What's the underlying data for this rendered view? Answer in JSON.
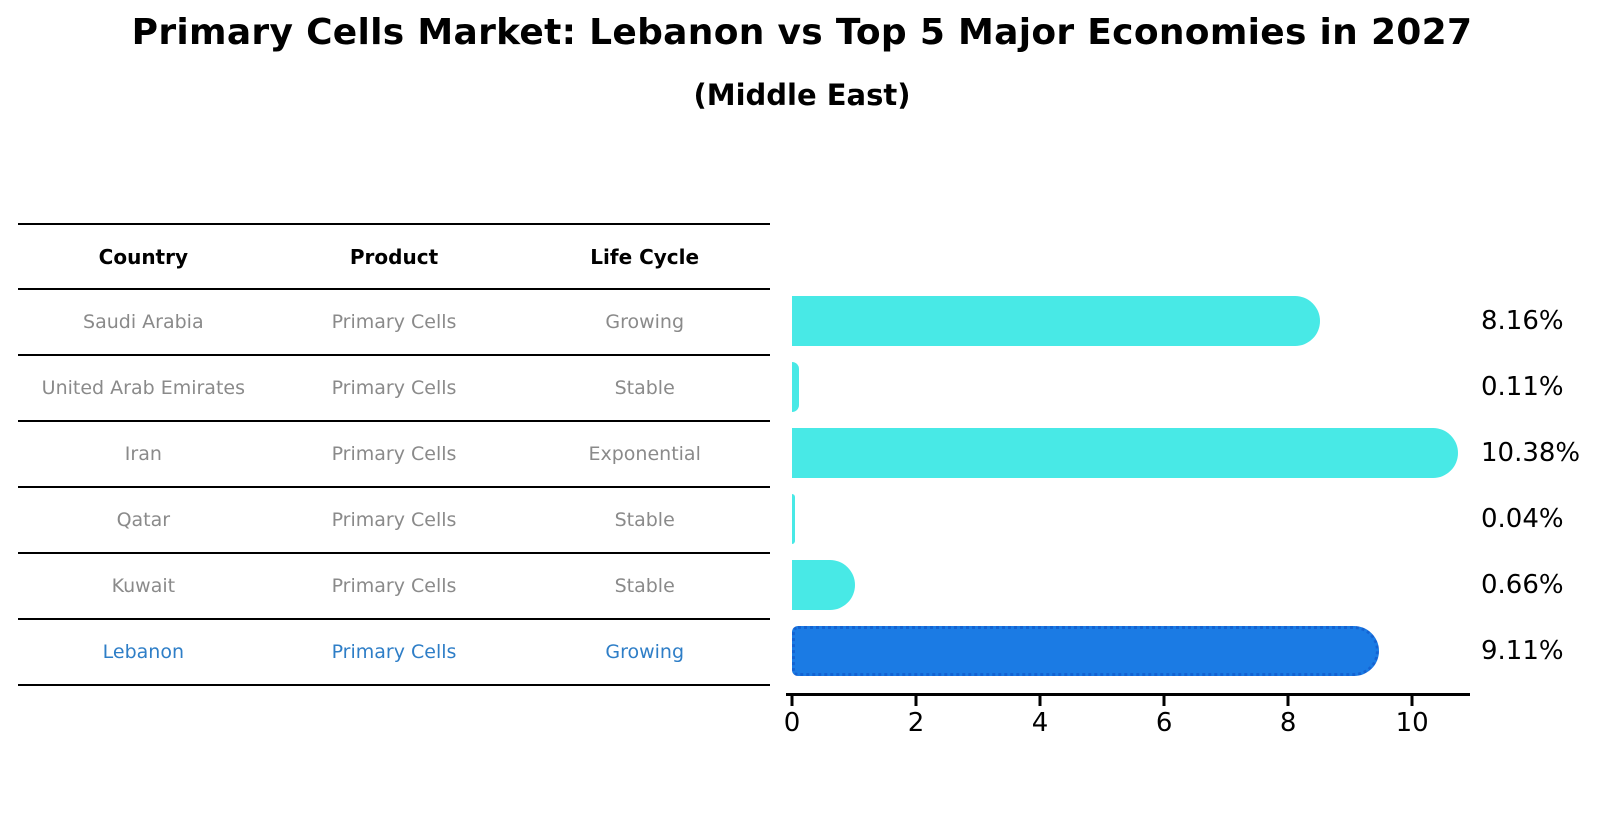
{
  "title": "Primary Cells Market: Lebanon vs Top 5 Major Economies in 2027",
  "subtitle": "(Middle East)",
  "table": {
    "headers": [
      "Country",
      "Product",
      "Life Cycle"
    ],
    "rows": [
      {
        "country": "Saudi Arabia",
        "product": "Primary Cells",
        "life_cycle": "Growing",
        "highlighted": false
      },
      {
        "country": "United Arab Emirates",
        "product": "Primary Cells",
        "life_cycle": "Stable",
        "highlighted": false
      },
      {
        "country": "Iran",
        "product": "Primary Cells",
        "life_cycle": "Exponential",
        "highlighted": false
      },
      {
        "country": "Qatar",
        "product": "Primary Cells",
        "life_cycle": "Stable",
        "highlighted": false
      },
      {
        "country": "Kuwait",
        "product": "Primary Cells",
        "life_cycle": "Stable",
        "highlighted": false
      },
      {
        "country": "Lebanon",
        "product": "Primary Cells",
        "life_cycle": "Growing",
        "highlighted": true
      }
    ]
  },
  "chart_data": {
    "type": "bar",
    "orientation": "horizontal",
    "title": "Primary Cells Market: Lebanon vs Top 5 Major Economies in 2027",
    "subtitle": "(Middle East)",
    "categories": [
      "Saudi Arabia",
      "United Arab Emirates",
      "Iran",
      "Qatar",
      "Kuwait",
      "Lebanon"
    ],
    "values": [
      8.16,
      0.11,
      10.38,
      0.04,
      0.66,
      9.11
    ],
    "labels": [
      "8.16%",
      "0.11%",
      "10.38%",
      "0.04%",
      "0.66%",
      "9.11%"
    ],
    "x_ticks": [
      0,
      2,
      4,
      6,
      8,
      10
    ],
    "xlim": [
      0,
      10.9
    ],
    "grid": false,
    "legend": "none",
    "highlight_index": 5
  },
  "colors": {
    "bar_color": "#48E9E6",
    "highlight_bar_color": "#1B7BE4",
    "highlight_bar_edge": "#1463D2",
    "highlight_text": "#2E7EC7",
    "row_text": "#8A8A8A",
    "header_text": "#000000",
    "axis_color": "#000000"
  }
}
